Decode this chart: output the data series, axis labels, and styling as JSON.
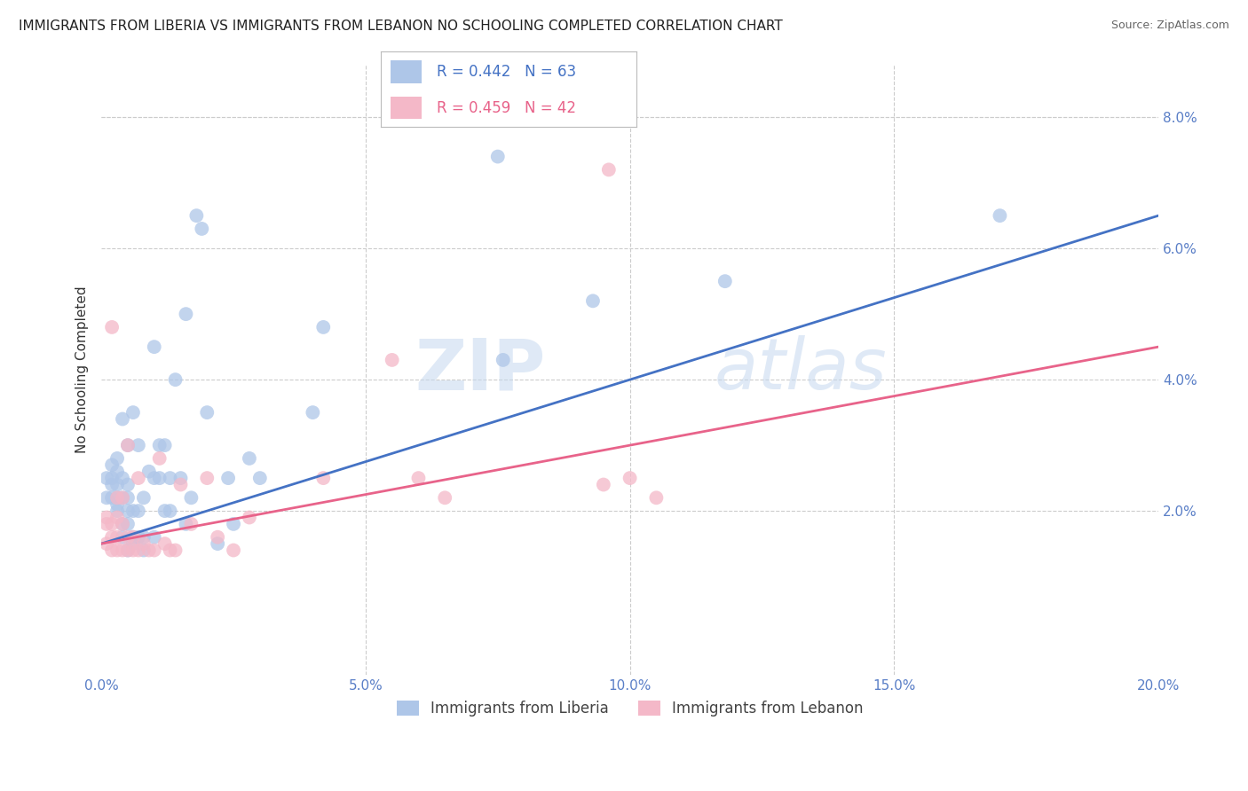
{
  "title": "IMMIGRANTS FROM LIBERIA VS IMMIGRANTS FROM LEBANON NO SCHOOLING COMPLETED CORRELATION CHART",
  "source": "Source: ZipAtlas.com",
  "ylabel": "No Schooling Completed",
  "legend_label_1": "Immigrants from Liberia",
  "legend_label_2": "Immigrants from Lebanon",
  "r1": 0.442,
  "n1": 63,
  "r2": 0.459,
  "n2": 42,
  "color_blue": "#aec6e8",
  "color_pink": "#f4b8c8",
  "line_color_blue": "#4472c4",
  "line_color_pink": "#e8638a",
  "xlim": [
    0.0,
    0.2
  ],
  "ylim": [
    -0.005,
    0.088
  ],
  "x_ticks": [
    0.0,
    0.05,
    0.1,
    0.15,
    0.2
  ],
  "x_tick_labels": [
    "0.0%",
    "5.0%",
    "10.0%",
    "15.0%",
    "20.0%"
  ],
  "y_ticks": [
    0.02,
    0.04,
    0.06,
    0.08
  ],
  "y_tick_labels": [
    "2.0%",
    "4.0%",
    "6.0%",
    "8.0%"
  ],
  "blue_line_x0": 0.0,
  "blue_line_y0": 0.015,
  "blue_line_x1": 0.2,
  "blue_line_y1": 0.065,
  "pink_line_x0": 0.0,
  "pink_line_y0": 0.015,
  "pink_line_x1": 0.2,
  "pink_line_y1": 0.045,
  "scatter_blue_x": [
    0.001,
    0.001,
    0.002,
    0.002,
    0.002,
    0.002,
    0.003,
    0.003,
    0.003,
    0.003,
    0.003,
    0.003,
    0.004,
    0.004,
    0.004,
    0.004,
    0.004,
    0.005,
    0.005,
    0.005,
    0.005,
    0.005,
    0.005,
    0.006,
    0.006,
    0.006,
    0.006,
    0.007,
    0.007,
    0.007,
    0.008,
    0.008,
    0.008,
    0.009,
    0.01,
    0.01,
    0.01,
    0.011,
    0.011,
    0.012,
    0.012,
    0.013,
    0.013,
    0.014,
    0.015,
    0.016,
    0.016,
    0.017,
    0.018,
    0.019,
    0.02,
    0.022,
    0.024,
    0.025,
    0.028,
    0.03,
    0.04,
    0.042,
    0.075,
    0.076,
    0.093,
    0.118,
    0.17
  ],
  "scatter_blue_y": [
    0.022,
    0.025,
    0.022,
    0.024,
    0.025,
    0.027,
    0.02,
    0.021,
    0.022,
    0.024,
    0.026,
    0.028,
    0.016,
    0.018,
    0.022,
    0.025,
    0.034,
    0.014,
    0.018,
    0.02,
    0.022,
    0.024,
    0.03,
    0.015,
    0.016,
    0.02,
    0.035,
    0.016,
    0.02,
    0.03,
    0.014,
    0.016,
    0.022,
    0.026,
    0.016,
    0.025,
    0.045,
    0.025,
    0.03,
    0.02,
    0.03,
    0.02,
    0.025,
    0.04,
    0.025,
    0.018,
    0.05,
    0.022,
    0.065,
    0.063,
    0.035,
    0.015,
    0.025,
    0.018,
    0.028,
    0.025,
    0.035,
    0.048,
    0.074,
    0.043,
    0.052,
    0.055,
    0.065
  ],
  "scatter_pink_x": [
    0.001,
    0.001,
    0.001,
    0.002,
    0.002,
    0.002,
    0.002,
    0.003,
    0.003,
    0.003,
    0.003,
    0.004,
    0.004,
    0.004,
    0.005,
    0.005,
    0.005,
    0.006,
    0.006,
    0.007,
    0.007,
    0.008,
    0.009,
    0.01,
    0.011,
    0.012,
    0.013,
    0.014,
    0.015,
    0.017,
    0.02,
    0.022,
    0.025,
    0.028,
    0.042,
    0.055,
    0.06,
    0.065,
    0.095,
    0.096,
    0.1,
    0.105
  ],
  "scatter_pink_y": [
    0.015,
    0.018,
    0.019,
    0.014,
    0.016,
    0.018,
    0.048,
    0.014,
    0.016,
    0.019,
    0.022,
    0.014,
    0.018,
    0.022,
    0.014,
    0.016,
    0.03,
    0.014,
    0.016,
    0.014,
    0.025,
    0.015,
    0.014,
    0.014,
    0.028,
    0.015,
    0.014,
    0.014,
    0.024,
    0.018,
    0.025,
    0.016,
    0.014,
    0.019,
    0.025,
    0.043,
    0.025,
    0.022,
    0.024,
    0.072,
    0.025,
    0.022
  ],
  "watermark_zip": "ZIP",
  "watermark_atlas": "atlas",
  "figwidth": 14.06,
  "figheight": 8.92,
  "dpi": 100
}
